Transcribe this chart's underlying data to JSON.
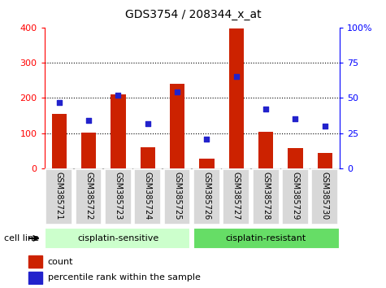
{
  "title": "GDS3754 / 208344_x_at",
  "categories": [
    "GSM385721",
    "GSM385722",
    "GSM385723",
    "GSM385724",
    "GSM385725",
    "GSM385726",
    "GSM385727",
    "GSM385728",
    "GSM385729",
    "GSM385730"
  ],
  "counts": [
    155,
    102,
    210,
    60,
    240,
    28,
    396,
    105,
    57,
    45
  ],
  "percentile_ranks": [
    47,
    34,
    52,
    32,
    54,
    21,
    65,
    42,
    35,
    30
  ],
  "bar_color": "#cc2200",
  "dot_color": "#2222cc",
  "bar_width": 0.5,
  "ylim_left": [
    0,
    400
  ],
  "ylim_right": [
    0,
    100
  ],
  "yticks_left": [
    0,
    100,
    200,
    300,
    400
  ],
  "yticks_right": [
    0,
    25,
    50,
    75,
    100
  ],
  "grid_lines": [
    100,
    200,
    300
  ],
  "legend_items": [
    "count",
    "percentile rank within the sample"
  ],
  "cell_line_label": "cell line",
  "group_labels": [
    "cisplatin-sensitive",
    "cisplatin-resistant"
  ],
  "sensitive_color": "#ccffcc",
  "resistant_color": "#66dd66",
  "xtick_bg_color": "#d8d8d8",
  "plot_bg_color": "#ffffff",
  "n_sensitive": 5,
  "n_resistant": 5
}
